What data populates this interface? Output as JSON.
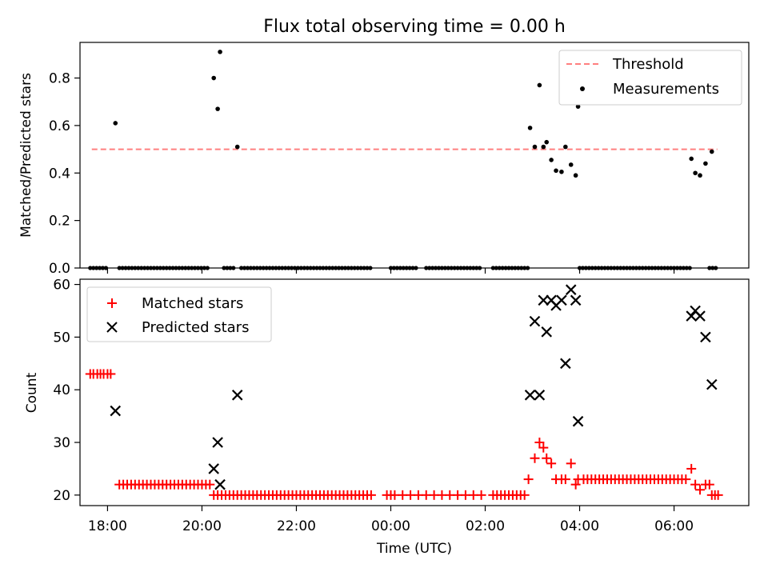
{
  "chart_data": [
    {
      "type": "scatter",
      "title": "Flux total observing time = 0.00 h",
      "xlabel": "",
      "ylabel": "Matched/Predicted stars",
      "xlim": [
        "17:25",
        "07:35"
      ],
      "ylim": [
        0,
        0.95
      ],
      "yticks": [
        "0.0",
        "0.2",
        "0.4",
        "0.6",
        "0.8"
      ],
      "grid": false,
      "legend": {
        "position": "top-right",
        "entries": [
          "Threshold",
          "Measurements"
        ]
      },
      "threshold": {
        "name": "Threshold",
        "value": 0.5,
        "x_range": [
          "17:40",
          "06:55"
        ],
        "color": "#ff7f7f"
      },
      "series": [
        {
          "name": "Measurements",
          "color": "#000000",
          "points": [
            [
              "18:10",
              0.61
            ],
            [
              "20:15",
              0.8
            ],
            [
              "20:20",
              0.67
            ],
            [
              "20:23",
              0.91
            ],
            [
              "20:45",
              0.51
            ],
            [
              "02:57",
              0.59
            ],
            [
              "03:03",
              0.51
            ],
            [
              "03:09",
              0.77
            ],
            [
              "03:14",
              0.51
            ],
            [
              "03:18",
              0.53
            ],
            [
              "03:24",
              0.455
            ],
            [
              "03:30",
              0.41
            ],
            [
              "03:37",
              0.405
            ],
            [
              "03:42",
              0.51
            ],
            [
              "03:49",
              0.435
            ],
            [
              "03:55",
              0.39
            ],
            [
              "03:58",
              0.68
            ],
            [
              "06:22",
              0.46
            ],
            [
              "06:27",
              0.4
            ],
            [
              "06:33",
              0.39
            ],
            [
              "06:40",
              0.44
            ],
            [
              "06:48",
              0.49
            ]
          ],
          "zero_runs": [
            [
              "17:38",
              "18:00"
            ],
            [
              "18:15",
              "20:10"
            ],
            [
              "20:28",
              "20:40"
            ],
            [
              "20:50",
              "23:35"
            ],
            [
              "00:00",
              "00:35"
            ],
            [
              "00:45",
              "01:55"
            ],
            [
              "02:10",
              "02:55"
            ],
            [
              "04:00",
              "06:20"
            ],
            [
              "06:45",
              "06:55"
            ]
          ]
        }
      ]
    },
    {
      "type": "scatter",
      "title": "",
      "xlabel": "Time (UTC)",
      "ylabel": "Count",
      "xlim": [
        "17:25",
        "07:35"
      ],
      "ylim": [
        18,
        61
      ],
      "yticks": [
        "20",
        "30",
        "40",
        "50",
        "60"
      ],
      "xticks": [
        "18:00",
        "20:00",
        "22:00",
        "00:00",
        "02:00",
        "04:00",
        "06:00"
      ],
      "grid": false,
      "legend": {
        "position": "top-left",
        "entries": [
          "Matched stars",
          "Predicted stars"
        ]
      },
      "series": [
        {
          "name": "Matched stars",
          "color": "#ff0000",
          "marker": "+",
          "points": [
            [
              "17:38",
              43
            ],
            [
              "17:42",
              43
            ],
            [
              "17:47",
              43
            ],
            [
              "17:51",
              43
            ],
            [
              "17:55",
              43
            ],
            [
              "18:00",
              43
            ],
            [
              "18:04",
              43
            ],
            [
              "18:15",
              22
            ],
            [
              "18:20",
              22
            ],
            [
              "18:25",
              22
            ],
            [
              "18:30",
              22
            ],
            [
              "18:35",
              22
            ],
            [
              "18:40",
              22
            ],
            [
              "18:45",
              22
            ],
            [
              "18:50",
              22
            ],
            [
              "18:55",
              22
            ],
            [
              "19:00",
              22
            ],
            [
              "19:05",
              22
            ],
            [
              "19:10",
              22
            ],
            [
              "19:15",
              22
            ],
            [
              "19:20",
              22
            ],
            [
              "19:25",
              22
            ],
            [
              "19:30",
              22
            ],
            [
              "19:35",
              22
            ],
            [
              "19:40",
              22
            ],
            [
              "19:45",
              22
            ],
            [
              "19:50",
              22
            ],
            [
              "19:55",
              22
            ],
            [
              "20:00",
              22
            ],
            [
              "20:05",
              22
            ],
            [
              "20:10",
              22
            ],
            [
              "20:15",
              20
            ],
            [
              "20:20",
              20
            ],
            [
              "20:25",
              20
            ],
            [
              "20:30",
              20
            ],
            [
              "20:35",
              20
            ],
            [
              "20:40",
              20
            ],
            [
              "20:45",
              20
            ],
            [
              "20:50",
              20
            ],
            [
              "20:55",
              20
            ],
            [
              "21:00",
              20
            ],
            [
              "21:05",
              20
            ],
            [
              "21:10",
              20
            ],
            [
              "21:15",
              20
            ],
            [
              "21:20",
              20
            ],
            [
              "21:25",
              20
            ],
            [
              "21:30",
              20
            ],
            [
              "21:35",
              20
            ],
            [
              "21:40",
              20
            ],
            [
              "21:45",
              20
            ],
            [
              "21:50",
              20
            ],
            [
              "21:55",
              20
            ],
            [
              "22:00",
              20
            ],
            [
              "22:05",
              20
            ],
            [
              "22:10",
              20
            ],
            [
              "22:15",
              20
            ],
            [
              "22:20",
              20
            ],
            [
              "22:25",
              20
            ],
            [
              "22:30",
              20
            ],
            [
              "22:35",
              20
            ],
            [
              "22:40",
              20
            ],
            [
              "22:45",
              20
            ],
            [
              "22:50",
              20
            ],
            [
              "22:55",
              20
            ],
            [
              "23:00",
              20
            ],
            [
              "23:05",
              20
            ],
            [
              "23:10",
              20
            ],
            [
              "23:15",
              20
            ],
            [
              "23:20",
              20
            ],
            [
              "23:25",
              20
            ],
            [
              "23:30",
              20
            ],
            [
              "23:35",
              20
            ],
            [
              "23:55",
              20
            ],
            [
              "00:00",
              20
            ],
            [
              "00:05",
              20
            ],
            [
              "00:15",
              20
            ],
            [
              "00:25",
              20
            ],
            [
              "00:35",
              20
            ],
            [
              "00:45",
              20
            ],
            [
              "00:55",
              20
            ],
            [
              "01:05",
              20
            ],
            [
              "01:15",
              20
            ],
            [
              "01:25",
              20
            ],
            [
              "01:35",
              20
            ],
            [
              "01:45",
              20
            ],
            [
              "01:55",
              20
            ],
            [
              "02:10",
              20
            ],
            [
              "02:15",
              20
            ],
            [
              "02:20",
              20
            ],
            [
              "02:25",
              20
            ],
            [
              "02:30",
              20
            ],
            [
              "02:35",
              20
            ],
            [
              "02:40",
              20
            ],
            [
              "02:45",
              20
            ],
            [
              "02:50",
              20
            ],
            [
              "02:55",
              23
            ],
            [
              "03:03",
              27
            ],
            [
              "03:09",
              30
            ],
            [
              "03:14",
              29
            ],
            [
              "03:18",
              27
            ],
            [
              "03:24",
              26
            ],
            [
              "03:30",
              23
            ],
            [
              "03:37",
              23
            ],
            [
              "03:42",
              23
            ],
            [
              "03:49",
              26
            ],
            [
              "03:55",
              22
            ],
            [
              "03:58",
              23
            ],
            [
              "04:05",
              23
            ],
            [
              "04:10",
              23
            ],
            [
              "04:15",
              23
            ],
            [
              "04:20",
              23
            ],
            [
              "04:25",
              23
            ],
            [
              "04:30",
              23
            ],
            [
              "04:35",
              23
            ],
            [
              "04:40",
              23
            ],
            [
              "04:45",
              23
            ],
            [
              "04:50",
              23
            ],
            [
              "04:55",
              23
            ],
            [
              "05:00",
              23
            ],
            [
              "05:05",
              23
            ],
            [
              "05:10",
              23
            ],
            [
              "05:15",
              23
            ],
            [
              "05:20",
              23
            ],
            [
              "05:25",
              23
            ],
            [
              "05:30",
              23
            ],
            [
              "05:35",
              23
            ],
            [
              "05:40",
              23
            ],
            [
              "05:45",
              23
            ],
            [
              "05:50",
              23
            ],
            [
              "05:55",
              23
            ],
            [
              "06:00",
              23
            ],
            [
              "06:05",
              23
            ],
            [
              "06:10",
              23
            ],
            [
              "06:15",
              23
            ],
            [
              "06:22",
              25
            ],
            [
              "06:27",
              22
            ],
            [
              "06:33",
              21
            ],
            [
              "06:40",
              22
            ],
            [
              "06:45",
              22
            ],
            [
              "06:48",
              20
            ],
            [
              "06:52",
              20
            ],
            [
              "06:56",
              20
            ]
          ]
        },
        {
          "name": "Predicted stars",
          "color": "#000000",
          "marker": "x",
          "points": [
            [
              "18:10",
              36
            ],
            [
              "20:15",
              25
            ],
            [
              "20:20",
              30
            ],
            [
              "20:23",
              22
            ],
            [
              "20:45",
              39
            ],
            [
              "02:57",
              39
            ],
            [
              "03:03",
              53
            ],
            [
              "03:09",
              39
            ],
            [
              "03:14",
              57
            ],
            [
              "03:18",
              51
            ],
            [
              "03:24",
              57
            ],
            [
              "03:30",
              56
            ],
            [
              "03:37",
              57
            ],
            [
              "03:42",
              45
            ],
            [
              "03:49",
              59
            ],
            [
              "03:55",
              57
            ],
            [
              "03:58",
              34
            ],
            [
              "06:22",
              54
            ],
            [
              "06:27",
              55
            ],
            [
              "06:33",
              54
            ],
            [
              "06:40",
              50
            ],
            [
              "06:48",
              41
            ]
          ]
        }
      ]
    }
  ]
}
